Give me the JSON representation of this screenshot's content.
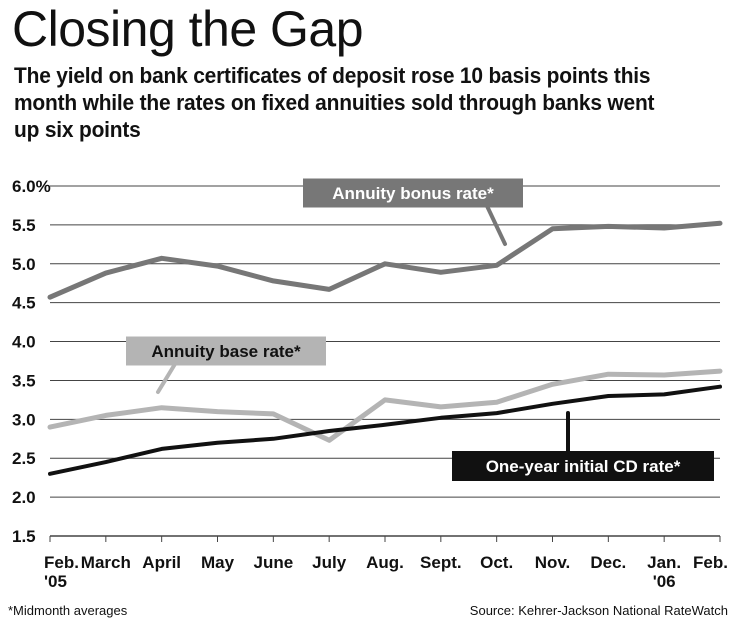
{
  "chart_data": {
    "type": "line",
    "title": "Closing the Gap",
    "subtitle": "The yield on bank certificates of deposit rose 10 basis points this month while the rates on fixed annuities sold through banks went up six points",
    "categories": [
      "Feb. '05",
      "March",
      "April",
      "May",
      "June",
      "July",
      "Aug.",
      "Sept.",
      "Oct.",
      "Nov.",
      "Dec.",
      "Jan. '06",
      "Feb."
    ],
    "category_lines": [
      [
        "Feb.",
        "'05"
      ],
      [
        "March"
      ],
      [
        "April"
      ],
      [
        "May"
      ],
      [
        "June"
      ],
      [
        "July"
      ],
      [
        "Aug."
      ],
      [
        "Sept."
      ],
      [
        "Oct."
      ],
      [
        "Nov."
      ],
      [
        "Dec."
      ],
      [
        "Jan.",
        "'06"
      ],
      [
        "Feb."
      ]
    ],
    "y_ticks": [
      "6.0%",
      "5.5",
      "5.0",
      "4.5",
      "4.0",
      "3.5",
      "3.0",
      "2.5",
      "2.0",
      "1.5"
    ],
    "ylim": [
      1.5,
      6.0
    ],
    "grid": true,
    "series": [
      {
        "name": "Annuity bonus rate*",
        "color": "#777777",
        "label_style": "dark-gray-box",
        "values": [
          4.57,
          4.88,
          5.07,
          4.97,
          4.78,
          4.67,
          5.0,
          4.89,
          4.98,
          5.45,
          5.48,
          5.46,
          5.52
        ]
      },
      {
        "name": "Annuity base rate*",
        "color": "#b4b4b4",
        "label_style": "light-gray-box",
        "values": [
          2.9,
          3.05,
          3.15,
          3.1,
          3.07,
          2.73,
          3.25,
          3.16,
          3.22,
          3.45,
          3.58,
          3.57,
          3.62
        ]
      },
      {
        "name": "One-year initial CD rate*",
        "color": "#111111",
        "label_style": "black-box",
        "values": [
          2.3,
          2.45,
          2.62,
          2.7,
          2.75,
          2.85,
          2.93,
          3.02,
          3.08,
          3.2,
          3.3,
          3.32,
          3.42
        ]
      }
    ],
    "footnote": "*Midmonth averages",
    "source": "Source: Kehrer-Jackson National RateWatch"
  }
}
